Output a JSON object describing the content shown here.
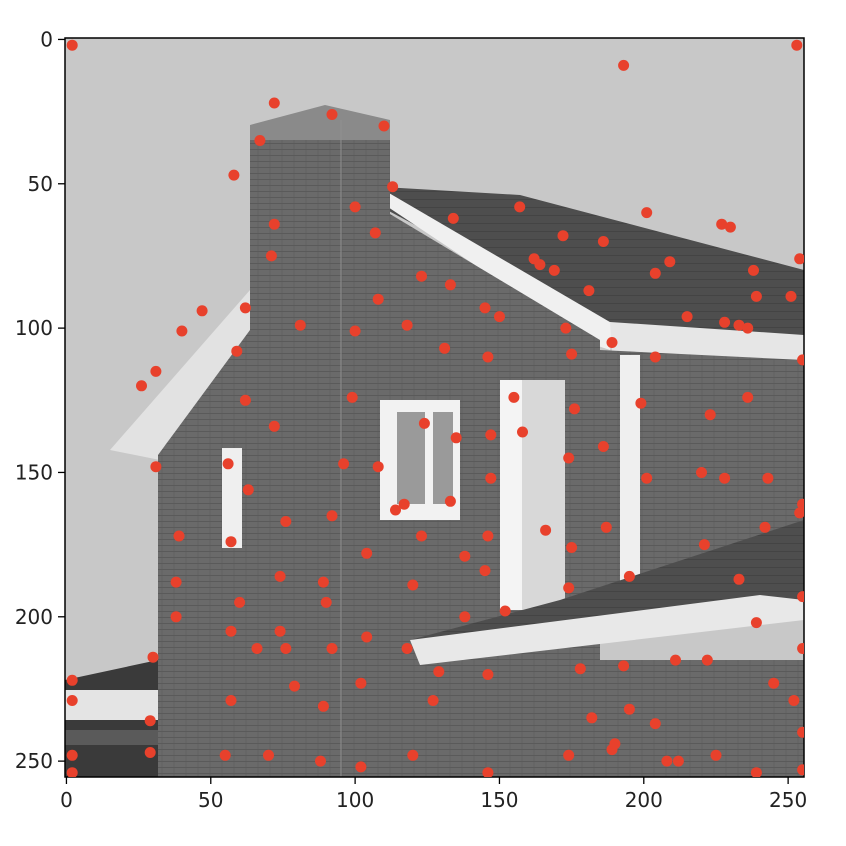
{
  "chart_data": {
    "type": "scatter",
    "title": "",
    "xlabel": "",
    "ylabel": "",
    "background": "grayscale photograph of a brick house with chimney, gabled roofs and white gutters",
    "xlim": [
      -0.5,
      255.5
    ],
    "ylim": [
      255.5,
      -0.5
    ],
    "y_inverted": true,
    "xticks": [
      0,
      50,
      100,
      150,
      200,
      250
    ],
    "yticks": [
      0,
      50,
      100,
      150,
      200,
      250
    ],
    "marker_color": "#e8412c",
    "grid": false,
    "points": [
      [
        2,
        2
      ],
      [
        193,
        9
      ],
      [
        253,
        2
      ],
      [
        72,
        22
      ],
      [
        92,
        26
      ],
      [
        110,
        30
      ],
      [
        67,
        35
      ],
      [
        58,
        47
      ],
      [
        113,
        51
      ],
      [
        100,
        58
      ],
      [
        157,
        58
      ],
      [
        134,
        62
      ],
      [
        201,
        60
      ],
      [
        72,
        64
      ],
      [
        227,
        64
      ],
      [
        230,
        65
      ],
      [
        172,
        68
      ],
      [
        107,
        67
      ],
      [
        186,
        70
      ],
      [
        71,
        75
      ],
      [
        162,
        76
      ],
      [
        164,
        78
      ],
      [
        169,
        80
      ],
      [
        209,
        77
      ],
      [
        254,
        76
      ],
      [
        204,
        81
      ],
      [
        123,
        82
      ],
      [
        133,
        85
      ],
      [
        238,
        80
      ],
      [
        181,
        87
      ],
      [
        108,
        90
      ],
      [
        239,
        89
      ],
      [
        251,
        89
      ],
      [
        47,
        94
      ],
      [
        62,
        93
      ],
      [
        145,
        93
      ],
      [
        150,
        96
      ],
      [
        215,
        96
      ],
      [
        40,
        101
      ],
      [
        81,
        99
      ],
      [
        118,
        99
      ],
      [
        100,
        101
      ],
      [
        173,
        100
      ],
      [
        228,
        98
      ],
      [
        233,
        99
      ],
      [
        236,
        100
      ],
      [
        59,
        108
      ],
      [
        131,
        107
      ],
      [
        189,
        105
      ],
      [
        146,
        110
      ],
      [
        175,
        109
      ],
      [
        204,
        110
      ],
      [
        255,
        111
      ],
      [
        26,
        120
      ],
      [
        31,
        115
      ],
      [
        62,
        125
      ],
      [
        99,
        124
      ],
      [
        155,
        124
      ],
      [
        176,
        128
      ],
      [
        199,
        126
      ],
      [
        236,
        124
      ],
      [
        72,
        134
      ],
      [
        124,
        133
      ],
      [
        135,
        138
      ],
      [
        147,
        137
      ],
      [
        158,
        136
      ],
      [
        223,
        130
      ],
      [
        186,
        141
      ],
      [
        31,
        148
      ],
      [
        56,
        147
      ],
      [
        96,
        147
      ],
      [
        108,
        148
      ],
      [
        174,
        145
      ],
      [
        201,
        152
      ],
      [
        220,
        150
      ],
      [
        228,
        152
      ],
      [
        243,
        152
      ],
      [
        63,
        156
      ],
      [
        117,
        161
      ],
      [
        133,
        160
      ],
      [
        147,
        152
      ],
      [
        114,
        163
      ],
      [
        39,
        172
      ],
      [
        57,
        174
      ],
      [
        76,
        167
      ],
      [
        92,
        165
      ],
      [
        123,
        172
      ],
      [
        146,
        172
      ],
      [
        166,
        170
      ],
      [
        175,
        176
      ],
      [
        187,
        169
      ],
      [
        221,
        175
      ],
      [
        242,
        169
      ],
      [
        255,
        161
      ],
      [
        254,
        164
      ],
      [
        38,
        188
      ],
      [
        74,
        186
      ],
      [
        89,
        188
      ],
      [
        104,
        178
      ],
      [
        120,
        189
      ],
      [
        138,
        179
      ],
      [
        145,
        184
      ],
      [
        174,
        190
      ],
      [
        195,
        186
      ],
      [
        233,
        187
      ],
      [
        38,
        200
      ],
      [
        60,
        195
      ],
      [
        90,
        195
      ],
      [
        138,
        200
      ],
      [
        152,
        198
      ],
      [
        255,
        193
      ],
      [
        57,
        205
      ],
      [
        74,
        205
      ],
      [
        66,
        211
      ],
      [
        76,
        211
      ],
      [
        92,
        211
      ],
      [
        104,
        207
      ],
      [
        118,
        211
      ],
      [
        30,
        214
      ],
      [
        239,
        202
      ],
      [
        255,
        211
      ],
      [
        2,
        222
      ],
      [
        79,
        224
      ],
      [
        102,
        223
      ],
      [
        129,
        219
      ],
      [
        146,
        220
      ],
      [
        178,
        218
      ],
      [
        193,
        217
      ],
      [
        211,
        215
      ],
      [
        222,
        215
      ],
      [
        245,
        223
      ],
      [
        2,
        229
      ],
      [
        57,
        229
      ],
      [
        89,
        231
      ],
      [
        127,
        229
      ],
      [
        182,
        235
      ],
      [
        195,
        232
      ],
      [
        204,
        237
      ],
      [
        252,
        229
      ],
      [
        29,
        236
      ],
      [
        2,
        248
      ],
      [
        29,
        247
      ],
      [
        55,
        248
      ],
      [
        70,
        248
      ],
      [
        88,
        250
      ],
      [
        102,
        252
      ],
      [
        120,
        248
      ],
      [
        146,
        254
      ],
      [
        174,
        248
      ],
      [
        189,
        246
      ],
      [
        190,
        244
      ],
      [
        208,
        250
      ],
      [
        212,
        250
      ],
      [
        225,
        248
      ],
      [
        239,
        254
      ],
      [
        2,
        254
      ],
      [
        255,
        240
      ],
      [
        255,
        253
      ]
    ]
  }
}
